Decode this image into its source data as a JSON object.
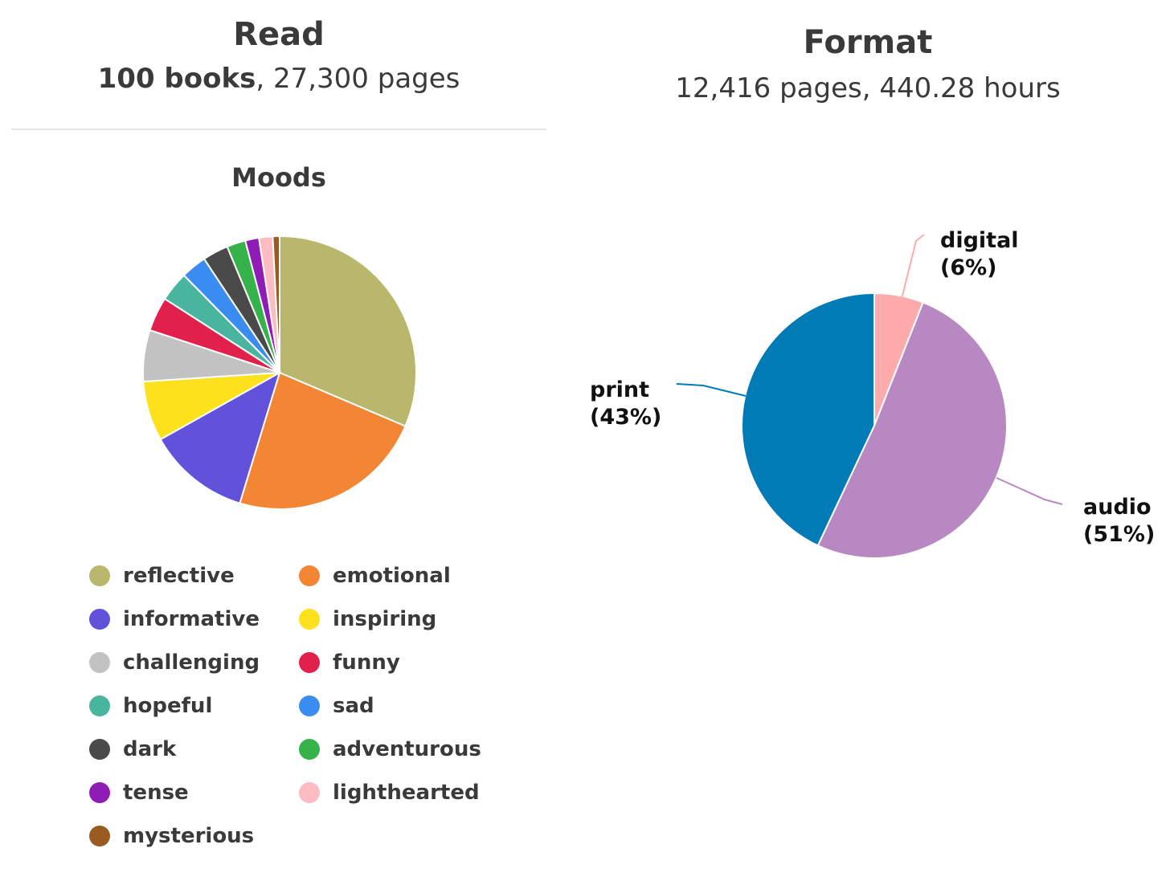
{
  "read": {
    "title": "Read",
    "books": "100 books",
    "rest": ", 27,300 pages"
  },
  "format": {
    "title": "Format",
    "subtitle": "12,416 pages, 440.28 hours"
  },
  "moods_title": "Moods",
  "chart_data": [
    {
      "type": "pie",
      "title": "Moods",
      "slices": [
        {
          "label": "reflective",
          "value": 31,
          "color": "#B9B76B"
        },
        {
          "label": "emotional",
          "value": 23,
          "color": "#F38634"
        },
        {
          "label": "informative",
          "value": 12,
          "color": "#6251DA"
        },
        {
          "label": "inspiring",
          "value": 7,
          "color": "#FDE11C"
        },
        {
          "label": "challenging",
          "value": 6,
          "color": "#C2C2C2"
        },
        {
          "label": "funny",
          "value": 4,
          "color": "#E2204C"
        },
        {
          "label": "hopeful",
          "value": 3.5,
          "color": "#49B59E"
        },
        {
          "label": "sad",
          "value": 3,
          "color": "#3A8CF0"
        },
        {
          "label": "dark",
          "value": 3,
          "color": "#4A4A4A"
        },
        {
          "label": "adventurous",
          "value": 2.2,
          "color": "#35B24A"
        },
        {
          "label": "tense",
          "value": 1.6,
          "color": "#8E1CB5"
        },
        {
          "label": "lighthearted",
          "value": 1.6,
          "color": "#FDBBC2"
        },
        {
          "label": "mysterious",
          "value": 0.8,
          "color": "#9A5B23"
        }
      ]
    },
    {
      "type": "pie",
      "title": "Format",
      "slices": [
        {
          "label": "digital",
          "percent_label": "(6%)",
          "value": 6,
          "color": "#FFABAB"
        },
        {
          "label": "audio",
          "percent_label": "(51%)",
          "value": 51,
          "color": "#B888C2"
        },
        {
          "label": "print",
          "percent_label": "(43%)",
          "value": 43,
          "color": "#007BB5"
        }
      ]
    }
  ]
}
